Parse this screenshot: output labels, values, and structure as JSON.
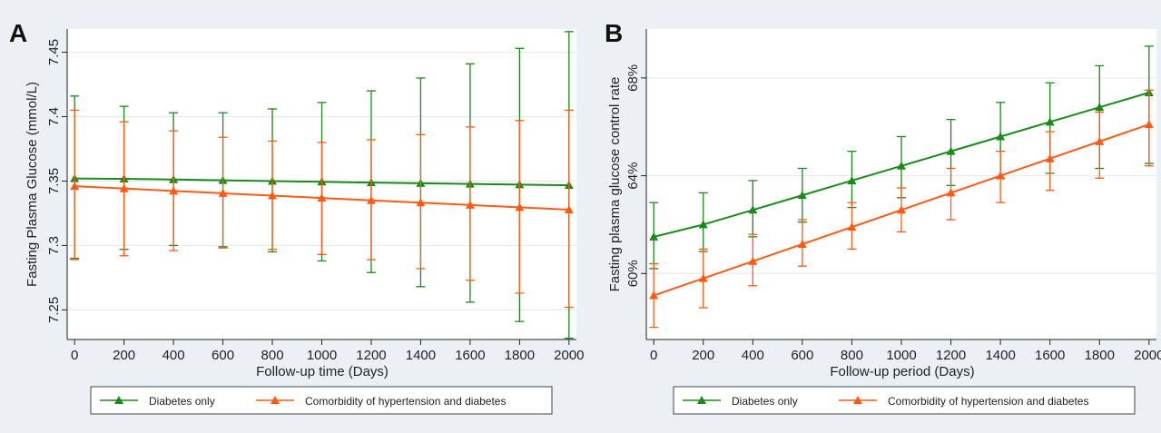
{
  "colors": {
    "background": "#eaf0f3",
    "plot_bg": "#ffffff",
    "grid": "#e4e8ec",
    "series_green": "#1a8a1a",
    "series_orange": "#ff5a14"
  },
  "chart_data": [
    {
      "panel_label": "A",
      "type": "line",
      "xlabel": "Follow-up time (Days)",
      "ylabel": "Fasting Plasma Glucose (mmol/L)",
      "x": [
        0,
        200,
        400,
        600,
        800,
        1000,
        1200,
        1400,
        1600,
        1800,
        2000
      ],
      "xticks": [
        "0",
        "200",
        "400",
        "600",
        "800",
        "1000",
        "1200",
        "1400",
        "1600",
        "1800",
        "2000"
      ],
      "xlim": [
        -30,
        2030
      ],
      "ylim": [
        7.227,
        7.468
      ],
      "yticks": [
        7.25,
        7.3,
        7.35,
        7.4,
        7.45
      ],
      "ytick_labels": [
        "7.25",
        "7.3",
        "7.35",
        "7.4",
        "7.45"
      ],
      "grid": true,
      "error_bars": true,
      "legend_position": "bottom",
      "series": [
        {
          "name": "Diabetes only",
          "color": "#1a8a1a",
          "marker": "triangle",
          "values": [
            7.352,
            7.3517,
            7.3512,
            7.3506,
            7.35,
            7.3494,
            7.3488,
            7.3483,
            7.3478,
            7.3472,
            7.3467
          ],
          "lower": [
            7.29,
            7.297,
            7.3,
            7.299,
            7.295,
            7.288,
            7.279,
            7.268,
            7.256,
            7.241,
            7.228
          ],
          "upper": [
            7.416,
            7.408,
            7.403,
            7.403,
            7.406,
            7.411,
            7.42,
            7.43,
            7.441,
            7.453,
            7.466
          ]
        },
        {
          "name": "Comorbidity of hypertension and diabetes",
          "color": "#ff5a14",
          "marker": "triangle",
          "values": [
            7.346,
            7.3442,
            7.3423,
            7.3405,
            7.3387,
            7.3368,
            7.335,
            7.3332,
            7.3314,
            7.3296,
            7.3278
          ],
          "lower": [
            7.289,
            7.292,
            7.296,
            7.298,
            7.297,
            7.293,
            7.289,
            7.282,
            7.273,
            7.263,
            7.252
          ],
          "upper": [
            7.405,
            7.396,
            7.389,
            7.384,
            7.381,
            7.38,
            7.382,
            7.386,
            7.392,
            7.397,
            7.405
          ]
        }
      ]
    },
    {
      "panel_label": "B",
      "type": "line",
      "xlabel": "Follow-up period (Days)",
      "ylabel": "Fasting plasma glucose control rate",
      "x": [
        0,
        200,
        400,
        600,
        800,
        1000,
        1200,
        1400,
        1600,
        1800,
        2000
      ],
      "xticks": [
        "0",
        "200",
        "400",
        "600",
        "800",
        "1000",
        "1200",
        "1400",
        "1600",
        "1800",
        "2000"
      ],
      "xlim": [
        -30,
        2030
      ],
      "ylim": [
        57.3,
        70.0
      ],
      "yticks": [
        60,
        64,
        68
      ],
      "ytick_labels": [
        "60%",
        "64%",
        "68%"
      ],
      "grid": true,
      "error_bars": true,
      "legend_position": "bottom",
      "series": [
        {
          "name": "Diabetes only",
          "color": "#1a8a1a",
          "marker": "triangle",
          "values": [
            61.5,
            62.0,
            62.6,
            63.2,
            63.8,
            64.4,
            65.0,
            65.6,
            66.2,
            66.8,
            67.4
          ],
          "lower": [
            60.2,
            60.9,
            61.5,
            62.1,
            62.7,
            63.1,
            63.6,
            63.9,
            64.1,
            64.3,
            64.5
          ],
          "upper": [
            62.9,
            63.3,
            63.8,
            64.3,
            65.0,
            65.6,
            66.3,
            67.0,
            67.8,
            68.5,
            69.3
          ]
        },
        {
          "name": "Comorbidity of hypertension and diabetes",
          "color": "#ff5a14",
          "marker": "triangle",
          "values": [
            59.1,
            59.8,
            60.5,
            61.2,
            61.9,
            62.6,
            63.3,
            64.0,
            64.7,
            65.4,
            66.1
          ],
          "lower": [
            57.8,
            58.6,
            59.5,
            60.3,
            61.0,
            61.7,
            62.2,
            62.9,
            63.4,
            63.9,
            64.4
          ],
          "upper": [
            60.4,
            61.0,
            61.6,
            62.2,
            62.9,
            63.5,
            64.3,
            65.0,
            65.8,
            66.6,
            67.5
          ]
        }
      ]
    }
  ]
}
